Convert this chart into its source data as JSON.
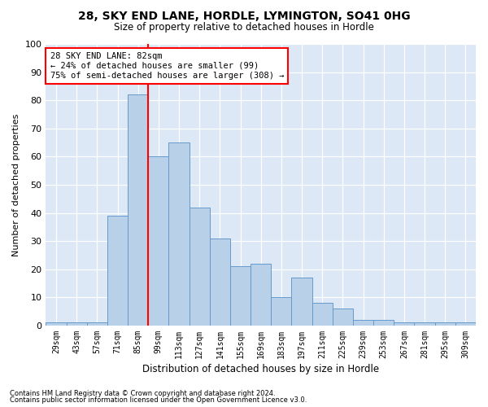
{
  "title1": "28, SKY END LANE, HORDLE, LYMINGTON, SO41 0HG",
  "title2": "Size of property relative to detached houses in Hordle",
  "xlabel": "Distribution of detached houses by size in Hordle",
  "ylabel": "Number of detached properties",
  "categories": [
    "29sqm",
    "43sqm",
    "57sqm",
    "71sqm",
    "85sqm",
    "99sqm",
    "113sqm",
    "127sqm",
    "141sqm",
    "155sqm",
    "169sqm",
    "183sqm",
    "197sqm",
    "211sqm",
    "225sqm",
    "239sqm",
    "253sqm",
    "267sqm",
    "281sqm",
    "295sqm",
    "309sqm"
  ],
  "values": [
    1,
    1,
    1,
    39,
    82,
    60,
    65,
    42,
    31,
    21,
    22,
    10,
    17,
    8,
    6,
    2,
    2,
    1,
    1,
    1,
    1
  ],
  "bar_color": "#b8d0e8",
  "bar_edge_color": "#6699cc",
  "vline_color": "red",
  "annotation_text": "28 SKY END LANE: 82sqm\n← 24% of detached houses are smaller (99)\n75% of semi-detached houses are larger (308) →",
  "annotation_box_color": "white",
  "annotation_box_edge": "red",
  "ylim": [
    0,
    100
  ],
  "yticks": [
    0,
    10,
    20,
    30,
    40,
    50,
    60,
    70,
    80,
    90,
    100
  ],
  "bg_color": "#dce8f5",
  "footnote1": "Contains HM Land Registry data © Crown copyright and database right 2024.",
  "footnote2": "Contains public sector information licensed under the Open Government Licence v3.0."
}
